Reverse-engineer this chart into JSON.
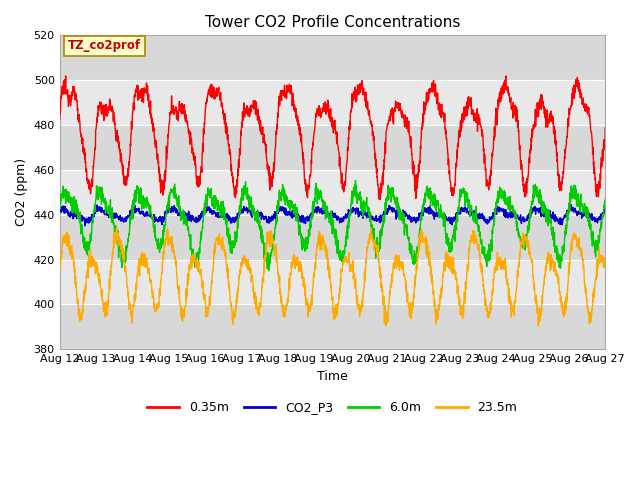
{
  "title": "Tower CO2 Profile Concentrations",
  "xlabel": "Time",
  "ylabel": "CO2 (ppm)",
  "ylim": [
    380,
    520
  ],
  "x_start": 12,
  "x_end": 27,
  "x_ticks": [
    12,
    13,
    14,
    15,
    16,
    17,
    18,
    19,
    20,
    21,
    22,
    23,
    24,
    25,
    26,
    27
  ],
  "x_tick_labels": [
    "Aug 12",
    "Aug 13",
    "Aug 14",
    "Aug 15",
    "Aug 16",
    "Aug 17",
    "Aug 18",
    "Aug 19",
    "Aug 20",
    "Aug 21",
    "Aug 22",
    "Aug 23",
    "Aug 24",
    "Aug 25",
    "Aug 26",
    "Aug 27"
  ],
  "background_color": "#ffffff",
  "plot_bg_color": "#e8e8e8",
  "stripe_color_light": "#f0f0f0",
  "stripe_color_dark": "#dddddd",
  "annotation_text": "TZ_co2prof",
  "annotation_bg": "#ffffcc",
  "annotation_border": "#aa8800",
  "legend_entries": [
    "0.35m",
    "CO2_P3",
    "6.0m",
    "23.5m"
  ],
  "line_colors": [
    "#ff0000",
    "#0000cc",
    "#00cc00",
    "#ffaa00"
  ],
  "title_fontsize": 11,
  "axis_label_fontsize": 9,
  "tick_fontsize": 8
}
